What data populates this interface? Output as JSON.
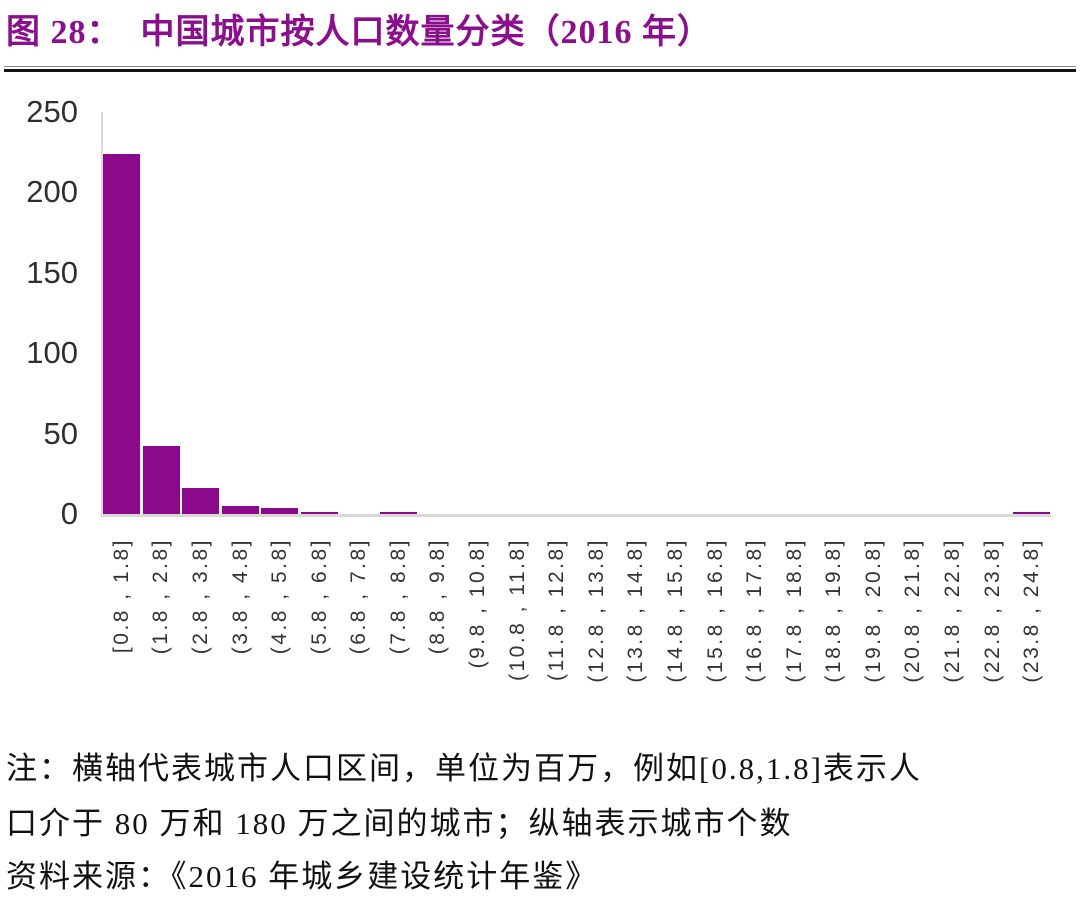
{
  "figure": {
    "title": "图 28：  中国城市按人口数量分类（2016 年）",
    "title_color": "#8B0F8C",
    "note_line1": "注：横轴代表城市人口区间，单位为百万，例如[0.8,1.8]表示人",
    "note_line2": "口介于 80 万和 180 万之间的城市；纵轴表示城市个数",
    "source": "资料来源：《2016 年城乡建设统计年鉴》"
  },
  "chart_data": {
    "type": "bar",
    "title": "中国城市按人口数量分类（2016 年）",
    "categories": [
      "[0.8 , 1.8]",
      "(1.8 , 2.8]",
      "(2.8 , 3.8]",
      "(3.8 , 4.8]",
      "(4.8 , 5.8]",
      "(5.8 , 6.8]",
      "(6.8 , 7.8]",
      "(7.8 , 8.8]",
      "(8.8 , 9.8]",
      "(9.8 , 10.8]",
      "(10.8 , 11.8]",
      "(11.8 , 12.8]",
      "(12.8 , 13.8]",
      "(13.8 , 14.8]",
      "(14.8 , 15.8]",
      "(15.8 , 16.8]",
      "(16.8 , 17.8]",
      "(17.8 , 18.8]",
      "(18.8 , 19.8]",
      "(19.8 , 20.8]",
      "(20.8 , 21.8]",
      "(21.8 , 22.8]",
      "(22.8 , 23.8]",
      "(23.8 , 24.8]"
    ],
    "values": [
      224,
      42,
      16,
      5,
      4,
      1,
      0,
      1,
      0,
      0,
      0,
      0,
      0,
      0,
      0,
      0,
      0,
      0,
      0,
      0,
      0,
      0,
      0,
      1
    ],
    "xlabel": "",
    "ylabel": "",
    "ylim": [
      0,
      250
    ],
    "yticks": [
      0,
      50,
      100,
      150,
      200,
      250
    ],
    "bar_color": "#8B0A8B",
    "axis_line_color": "#D9D9D9",
    "grid": false,
    "legend": "none"
  }
}
